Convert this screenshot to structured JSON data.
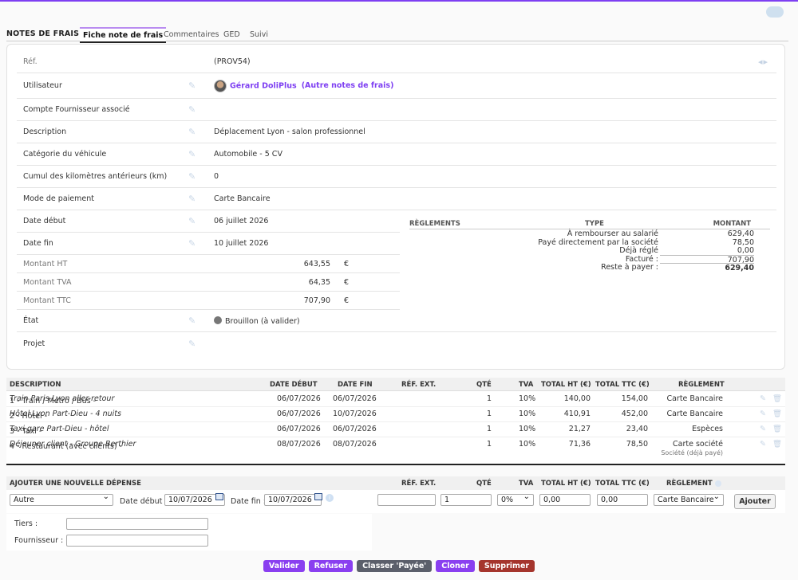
{
  "tabs": {
    "title": "NOTES DE FRAIS",
    "items": [
      "Fiche note de frais",
      "Commentaires",
      "GED",
      "Suivi"
    ]
  },
  "fields": {
    "ref_label": "Réf.",
    "ref_value": "(PROV54)",
    "user_label": "Utilisateur",
    "user_name": "Gérard DoliPlus",
    "user_other": "(Autre notes de frais)",
    "supplier_label": "Compte Fournisseur associé",
    "description_label": "Description",
    "description_value": "Déplacement Lyon - salon professionnel",
    "vehicle_label": "Catégorie du véhicule",
    "vehicle_value": "Automobile - 5 CV",
    "km_label": "Cumul des kilomètres antérieurs (km)",
    "km_value": "0",
    "payment_label": "Mode de paiement",
    "payment_value": "Carte Bancaire",
    "start_label": "Date début",
    "start_value": "06 juillet 2026",
    "end_label": "Date fin",
    "end_value": "10 juillet 2026",
    "ht_label": "Montant HT",
    "ht_value": "643,55",
    "tva_label": "Montant TVA",
    "tva_value": "64,35",
    "ttc_label": "Montant TTC",
    "ttc_value": "707,90",
    "currency": "€",
    "state_label": "État",
    "state_value": "Brouillon (à valider)",
    "project_label": "Projet"
  },
  "reglements": {
    "h_reg": "RÈGLEMENTS",
    "h_type": "TYPE",
    "h_montant": "MONTANT",
    "lines": [
      {
        "label": "À rembourser au salarié",
        "value": "629,40"
      },
      {
        "label": "Payé directement par la société",
        "value": "78,50"
      },
      {
        "label": "Déjà réglé",
        "value": "0,00"
      },
      {
        "label": "Facturé :",
        "value": "707,90"
      },
      {
        "label": "Reste à payer :",
        "value": "629,40"
      }
    ]
  },
  "lines_table": {
    "headers": {
      "description": "DESCRIPTION",
      "date_debut": "DATE DÉBUT",
      "date_fin": "DATE FIN",
      "ref_ext": "RÉF. EXT.",
      "qty": "QTÉ",
      "tva": "TVA",
      "total_ht": "TOTAL HT (€)",
      "total_ttc": "TOTAL TTC (€)",
      "reglement": "RÈGLEMENT"
    },
    "rows": [
      {
        "type": "1 - Train / Métro / Bus - ",
        "comment": "Train Paris-Lyon aller-retour",
        "start": "06/07/2026",
        "end": "06/07/2026",
        "qty": "1",
        "tva": "10%",
        "ht": "140,00",
        "ttc": "154,00",
        "pay": "Carte Bancaire",
        "sub": ""
      },
      {
        "type": "2 - Hôtel - ",
        "comment": "Hôtel Lyon Part-Dieu - 4 nuits",
        "start": "06/07/2026",
        "end": "10/07/2026",
        "qty": "1",
        "tva": "10%",
        "ht": "410,91",
        "ttc": "452,00",
        "pay": "Carte Bancaire",
        "sub": ""
      },
      {
        "type": "3 - Taxi - ",
        "comment": "Taxi gare Part-Dieu - hôtel",
        "start": "06/07/2026",
        "end": "06/07/2026",
        "qty": "1",
        "tva": "10%",
        "ht": "21,27",
        "ttc": "23,40",
        "pay": "Espèces",
        "sub": ""
      },
      {
        "type": "4 - Restaurant (avec clients) - ",
        "comment": "Déjeuner client - Groupe Berthier",
        "start": "08/07/2026",
        "end": "08/07/2026",
        "qty": "1",
        "tva": "10%",
        "ht": "71,36",
        "ttc": "78,50",
        "pay": "Carte société",
        "sub": "Société (déjà payé)"
      }
    ]
  },
  "add_expense": {
    "title": "AJOUTER UNE NOUVELLE DÉPENSE",
    "h_ref": "RÉF. EXT.",
    "h_qty": "QTÉ",
    "h_tva": "TVA",
    "h_ht": "TOTAL HT (€)",
    "h_ttc": "TOTAL TTC (€)",
    "h_reg": "RÈGLEMENT",
    "type_value": "Autre",
    "start_label": "Date début :",
    "start_value": "10/07/2026",
    "end_label": "Date fin :",
    "end_value": "10/07/2026",
    "ref_value": "",
    "qty_value": "1",
    "tva_value": "0%",
    "ht_value": "0,00",
    "ttc_value": "0,00",
    "pay_value": "Carte Bancaire",
    "add_label": "Ajouter",
    "tiers_label": "Tiers :",
    "supplier_label": "Fournisseur :"
  },
  "actions": {
    "validate": "Valider",
    "refuse": "Refuser",
    "classify": "Classer 'Payée'",
    "clone": "Cloner",
    "delete": "Supprimer"
  }
}
